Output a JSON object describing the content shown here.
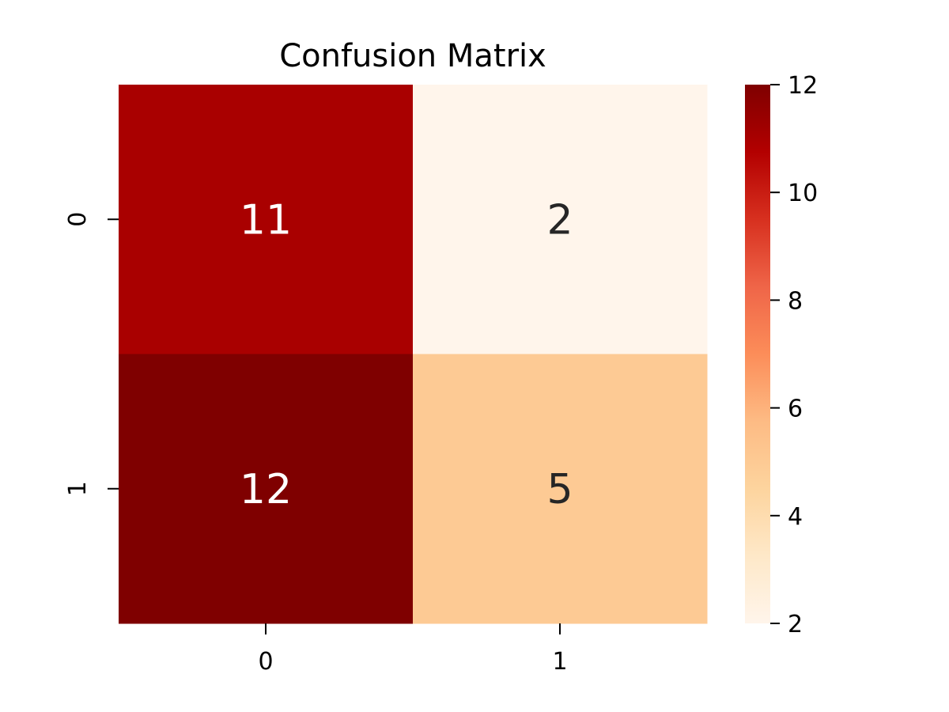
{
  "chart_data": {
    "type": "heatmap",
    "title": "Confusion Matrix",
    "xlabel": "",
    "ylabel": "",
    "x_categories": [
      "0",
      "1"
    ],
    "y_categories": [
      "0",
      "1"
    ],
    "values": [
      [
        11,
        2
      ],
      [
        12,
        5
      ]
    ],
    "colorbar": {
      "range": [
        2,
        12
      ],
      "ticks": [
        2,
        4,
        6,
        8,
        10,
        12
      ],
      "colormap": "OrRd",
      "low_color": "#fff5eb",
      "high_color": "#7f0000"
    },
    "annotations": true
  }
}
